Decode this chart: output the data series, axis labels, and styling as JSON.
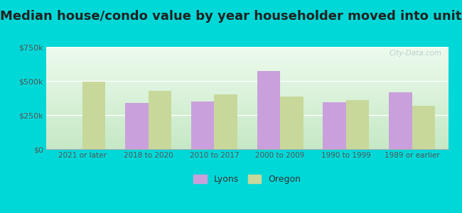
{
  "title": "Median house/condo value by year householder moved into unit",
  "categories": [
    "2021 or later",
    "2018 to 2020",
    "2010 to 2017",
    "2000 to 2009",
    "1990 to 1999",
    "1989 or earlier"
  ],
  "lyons": [
    0,
    340000,
    350000,
    575000,
    345000,
    415000
  ],
  "oregon": [
    495000,
    425000,
    400000,
    385000,
    360000,
    320000
  ],
  "lyons_color": "#c9a0dc",
  "oregon_color": "#c8d89a",
  "background_outer": "#00d8d8",
  "ylim": [
    0,
    750000
  ],
  "yticks": [
    0,
    250000,
    500000,
    750000
  ],
  "ytick_labels": [
    "$0",
    "$250k",
    "$500k",
    "$750k"
  ],
  "title_fontsize": 13,
  "legend_lyons": "Lyons",
  "legend_oregon": "Oregon",
  "bar_width": 0.35,
  "watermark": "City-Data.com"
}
